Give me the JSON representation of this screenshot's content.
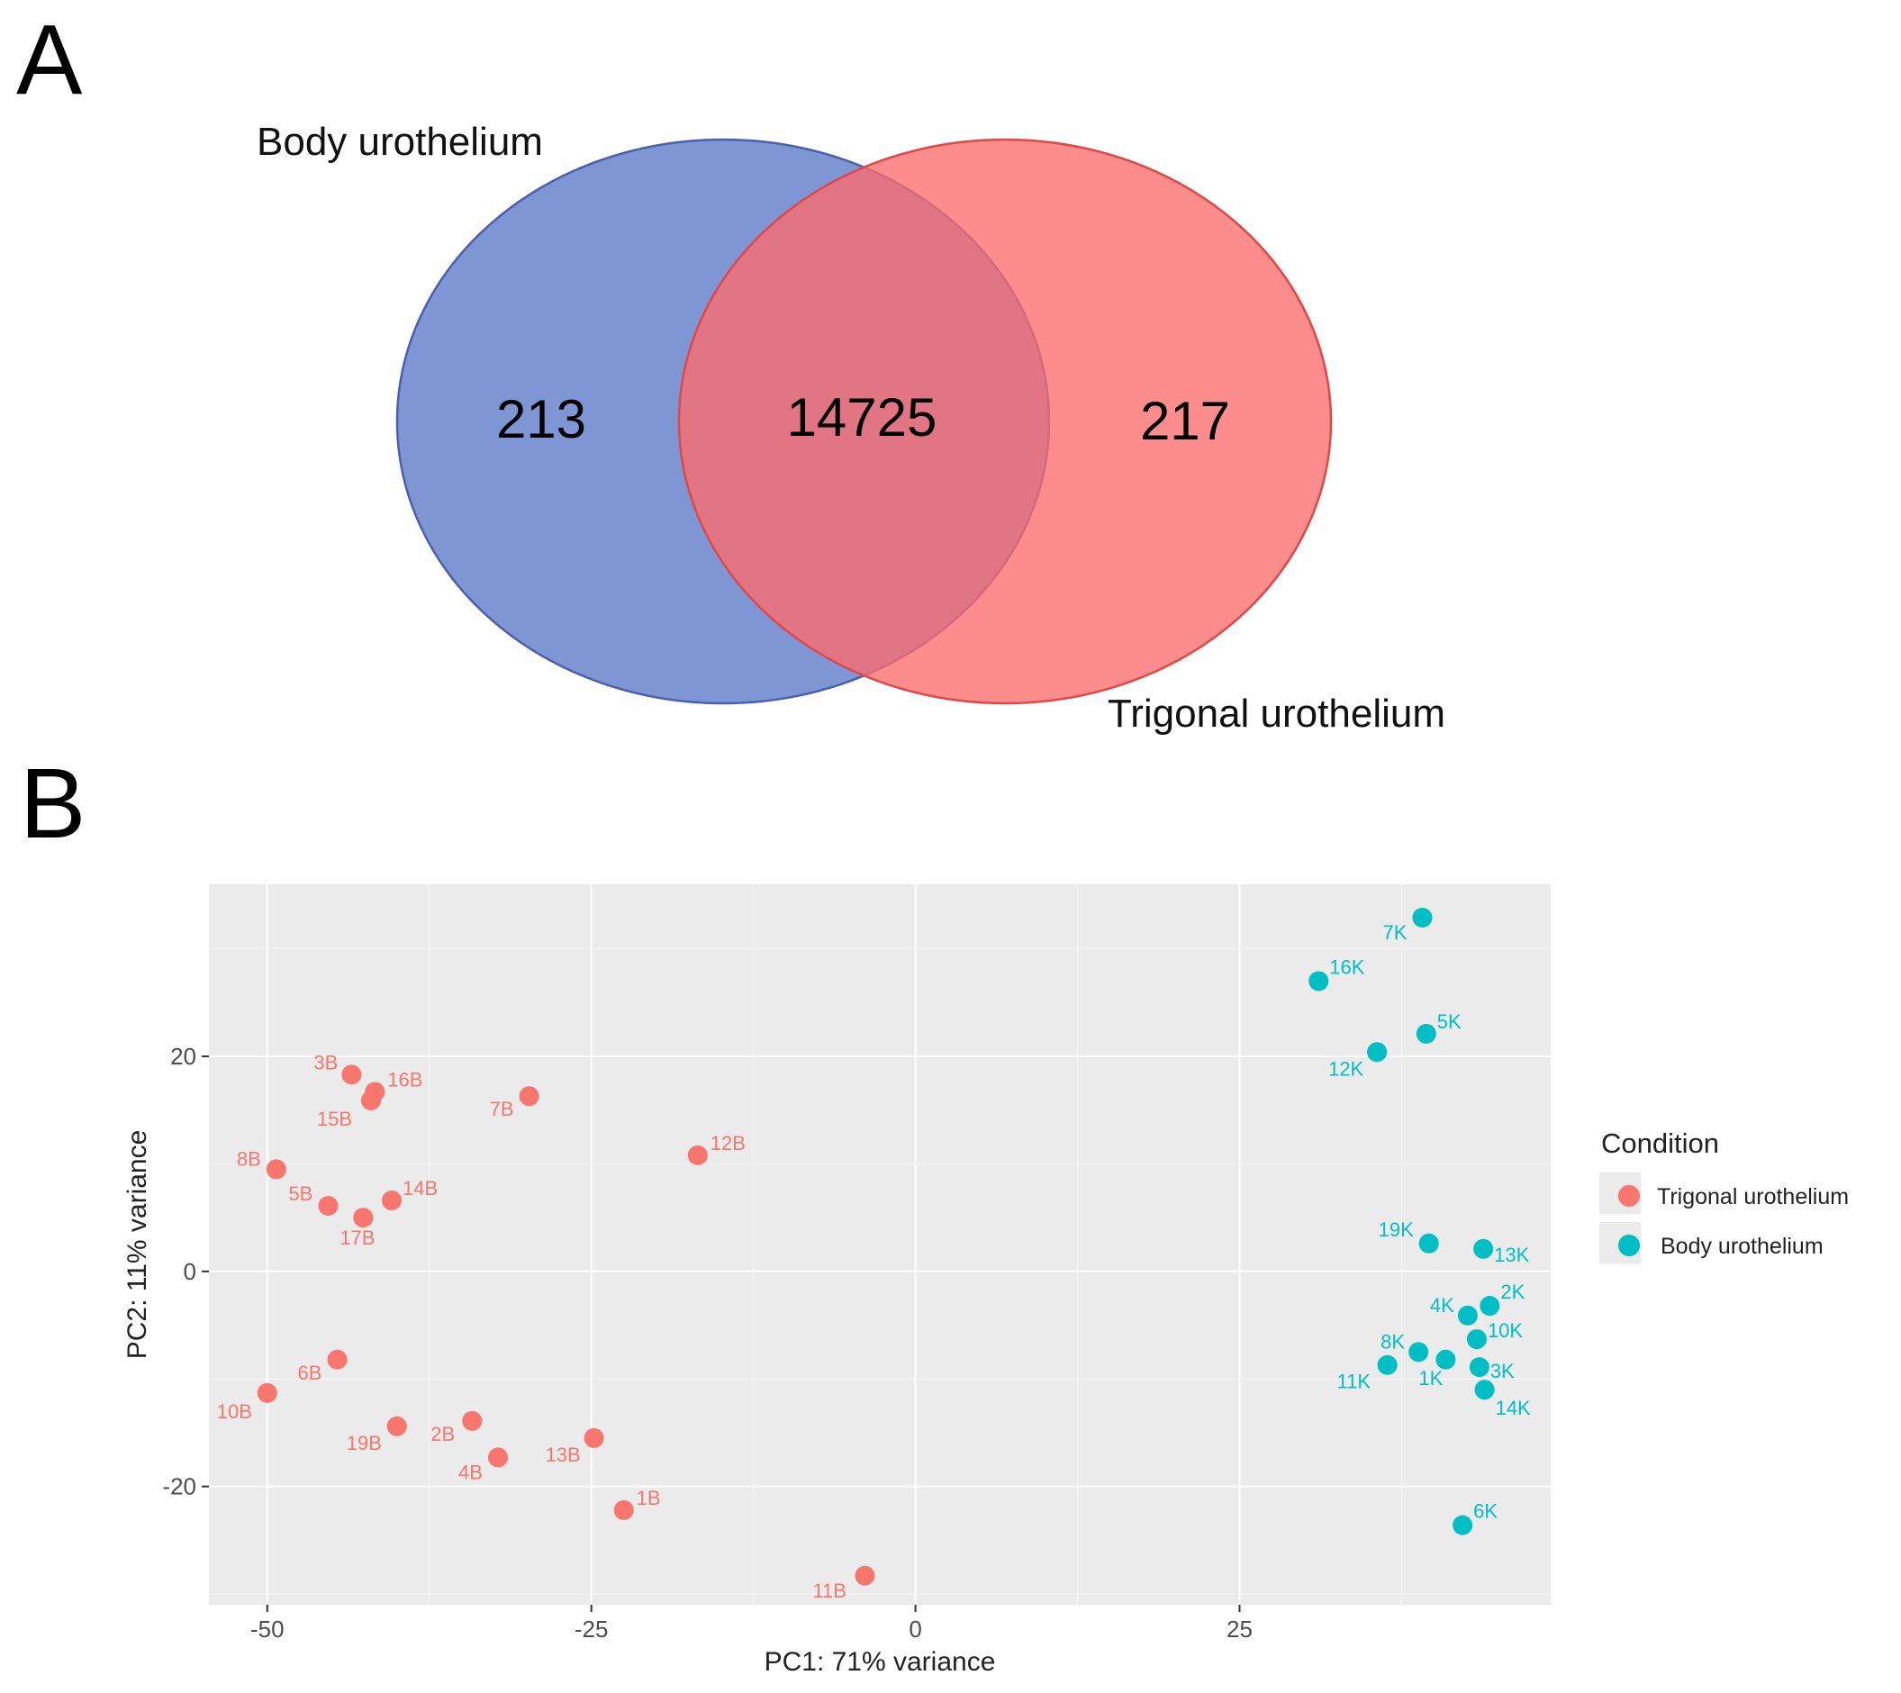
{
  "colors": {
    "trigonal": "#f8766d",
    "body": "#00bfc4",
    "venn_body_fill": "#5b79c9",
    "venn_body_stroke": "#4a5fb0",
    "venn_trigonal_fill": "#fd6b6b",
    "venn_trigonal_stroke": "#e04848",
    "panel_bg": "#ebebeb",
    "grid": "#ffffff"
  },
  "panel_a": {
    "letter": "A",
    "set_left_label": "Body urothelium",
    "set_right_label": "Trigonal urothelium",
    "left_only": "213",
    "overlap": "14725",
    "right_only": "217"
  },
  "panel_b": {
    "letter": "B",
    "legend_title": "Condition",
    "legend_items": [
      "Trigonal urothelium",
      "Body urothelium"
    ]
  },
  "chart_data": [
    {
      "type": "venn",
      "sets": [
        "Body urothelium",
        "Trigonal urothelium"
      ],
      "values": {
        "Body urothelium only": 213,
        "intersection": 14725,
        "Trigonal urothelium only": 217
      }
    },
    {
      "type": "scatter",
      "title": "",
      "xlabel": "PC1: 71% variance",
      "ylabel": "PC2: 11% variance",
      "xlim": [
        -54.5,
        49
      ],
      "ylim": [
        -31,
        36
      ],
      "xticks": [
        -50,
        -25,
        0,
        25
      ],
      "xtick_labels": [
        "-50",
        "-25",
        "0",
        "25"
      ],
      "yticks": [
        -20,
        0,
        20
      ],
      "ytick_labels": [
        "-20",
        "0",
        "20"
      ],
      "grid": true,
      "legend": "right",
      "series": [
        {
          "name": "Trigonal urothelium",
          "points": [
            {
              "label": "3B",
              "x": -43.5,
              "y": 18.3
            },
            {
              "label": "16B",
              "x": -41.7,
              "y": 16.7
            },
            {
              "label": "15B",
              "x": -42.0,
              "y": 15.9
            },
            {
              "label": "7B",
              "x": -29.8,
              "y": 16.3
            },
            {
              "label": "12B",
              "x": -16.8,
              "y": 10.8
            },
            {
              "label": "8B",
              "x": -49.3,
              "y": 9.5
            },
            {
              "label": "5B",
              "x": -45.3,
              "y": 6.1
            },
            {
              "label": "14B",
              "x": -40.4,
              "y": 6.6
            },
            {
              "label": "17B",
              "x": -42.6,
              "y": 5.0
            },
            {
              "label": "6B",
              "x": -44.6,
              "y": -8.2
            },
            {
              "label": "10B",
              "x": -50.0,
              "y": -11.3
            },
            {
              "label": "19B",
              "x": -40.0,
              "y": -14.4
            },
            {
              "label": "2B",
              "x": -34.2,
              "y": -13.9
            },
            {
              "label": "4B",
              "x": -32.2,
              "y": -17.3
            },
            {
              "label": "13B",
              "x": -24.8,
              "y": -15.5
            },
            {
              "label": "1B",
              "x": -22.5,
              "y": -22.2
            },
            {
              "label": "11B",
              "x": -3.9,
              "y": -28.3
            }
          ]
        },
        {
          "name": "Body urothelium",
          "points": [
            {
              "label": "7K",
              "x": 39.1,
              "y": 32.9
            },
            {
              "label": "16K",
              "x": 31.1,
              "y": 27.0
            },
            {
              "label": "5K",
              "x": 39.4,
              "y": 22.1
            },
            {
              "label": "12K",
              "x": 35.6,
              "y": 20.4
            },
            {
              "label": "19K",
              "x": 39.6,
              "y": 2.6
            },
            {
              "label": "13K",
              "x": 43.8,
              "y": 2.1
            },
            {
              "label": "2K",
              "x": 44.3,
              "y": -3.2
            },
            {
              "label": "4K",
              "x": 42.6,
              "y": -4.1
            },
            {
              "label": "10K",
              "x": 43.3,
              "y": -6.3
            },
            {
              "label": "8K",
              "x": 38.8,
              "y": -7.5
            },
            {
              "label": "1K",
              "x": 40.9,
              "y": -8.2
            },
            {
              "label": "11K",
              "x": 36.4,
              "y": -8.7
            },
            {
              "label": "3K",
              "x": 43.5,
              "y": -8.9
            },
            {
              "label": "14K",
              "x": 43.9,
              "y": -11.0
            },
            {
              "label": "6K",
              "x": 42.2,
              "y": -23.6
            }
          ]
        }
      ]
    }
  ]
}
